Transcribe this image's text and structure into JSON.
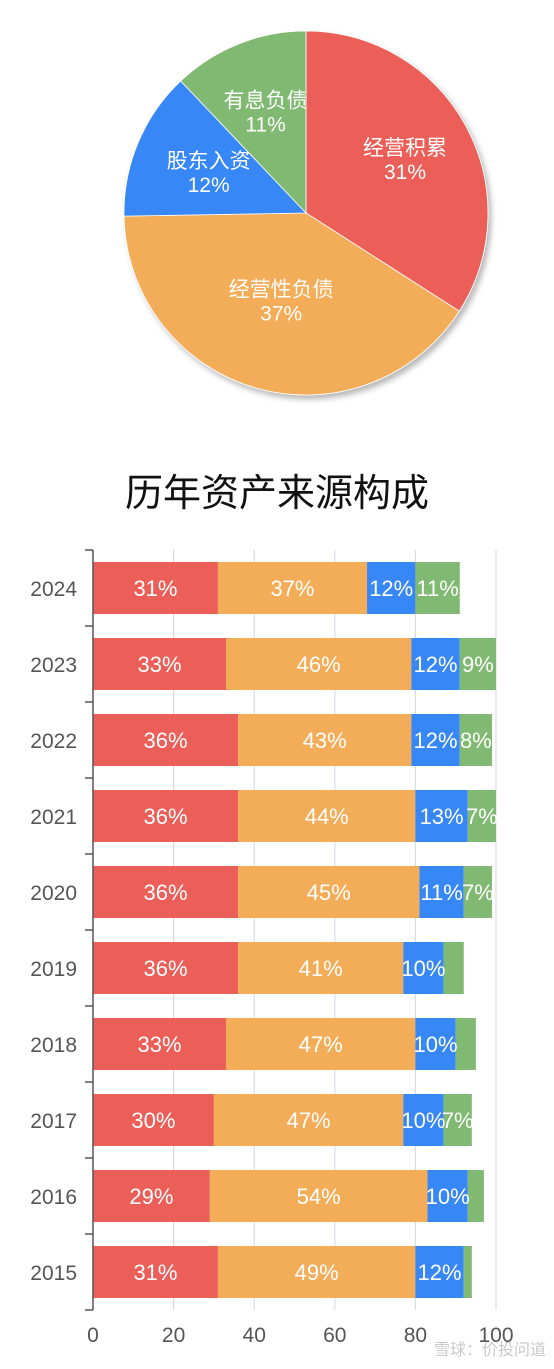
{
  "colors": {
    "red": "#ec5f59",
    "orange": "#f3ad58",
    "blue": "#3787f6",
    "green": "#80b971",
    "grid": "#d9dce8",
    "axis": "#555555"
  },
  "chart_data": [
    {
      "type": "pie",
      "slices": [
        {
          "label": "经营积累",
          "value": 31,
          "text": "31%",
          "color": "#ec5f59"
        },
        {
          "label": "经营性负债",
          "value": 37,
          "text": "37%",
          "color": "#f3ad58"
        },
        {
          "label": "股东入资",
          "value": 12,
          "text": "12%",
          "color": "#3787f6"
        },
        {
          "label": "有息负债",
          "value": 11,
          "text": "11%",
          "color": "#80b971"
        }
      ]
    },
    {
      "type": "bar",
      "orientation": "horizontal",
      "stacked": true,
      "title": "历年资产来源构成",
      "categories": [
        "2024",
        "2023",
        "2022",
        "2021",
        "2020",
        "2019",
        "2018",
        "2017",
        "2016",
        "2015"
      ],
      "series": [
        {
          "name": "经营积累",
          "color": "#ec5f59",
          "values": [
            31,
            33,
            36,
            36,
            36,
            36,
            33,
            30,
            29,
            31
          ]
        },
        {
          "name": "经营性负债",
          "color": "#f3ad58",
          "values": [
            37,
            46,
            43,
            44,
            45,
            41,
            47,
            47,
            54,
            49
          ]
        },
        {
          "name": "股东入资",
          "color": "#3787f6",
          "values": [
            12,
            12,
            12,
            13,
            11,
            10,
            10,
            10,
            10,
            12
          ]
        },
        {
          "name": "有息负债",
          "color": "#80b971",
          "values": [
            11,
            9,
            8,
            7,
            7,
            5,
            5,
            7,
            4,
            2
          ]
        }
      ],
      "xlim": [
        0,
        100
      ],
      "xticks": [
        0,
        20,
        40,
        60,
        80,
        100
      ],
      "grid": true,
      "label_threshold": 6
    }
  ],
  "watermark": "雪球：价投问道"
}
